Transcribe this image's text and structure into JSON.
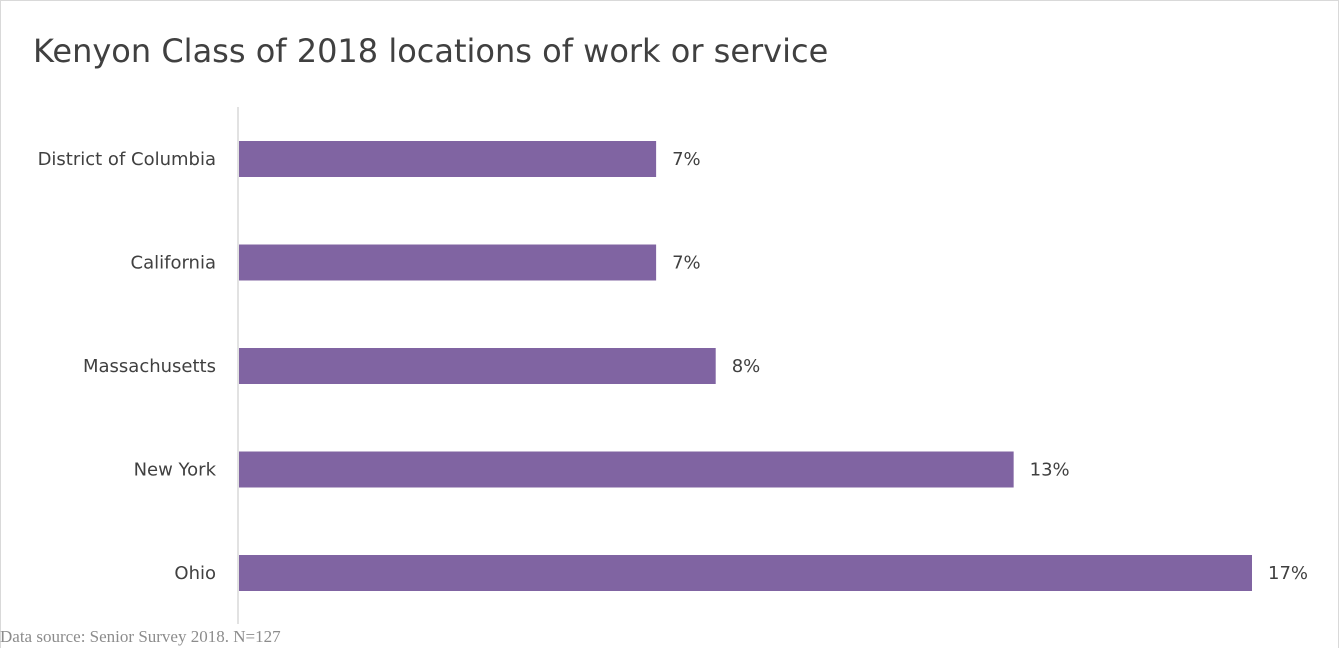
{
  "chart_data": {
    "type": "bar",
    "orientation": "horizontal",
    "title": "Kenyon Class of 2018 locations of work or service",
    "categories": [
      "District of Columbia",
      "California",
      "Massachusetts",
      "New York",
      "Ohio"
    ],
    "values": [
      7,
      7,
      8,
      13,
      17
    ],
    "value_labels": [
      "7%",
      "7%",
      "8%",
      "13%",
      "17%"
    ],
    "value_unit": "%",
    "xlim": [
      0,
      17
    ],
    "grid": false,
    "legend": "none",
    "bar_color": "#8064a2",
    "source_note": "Data source: Senior Survey 2018. N=127"
  }
}
